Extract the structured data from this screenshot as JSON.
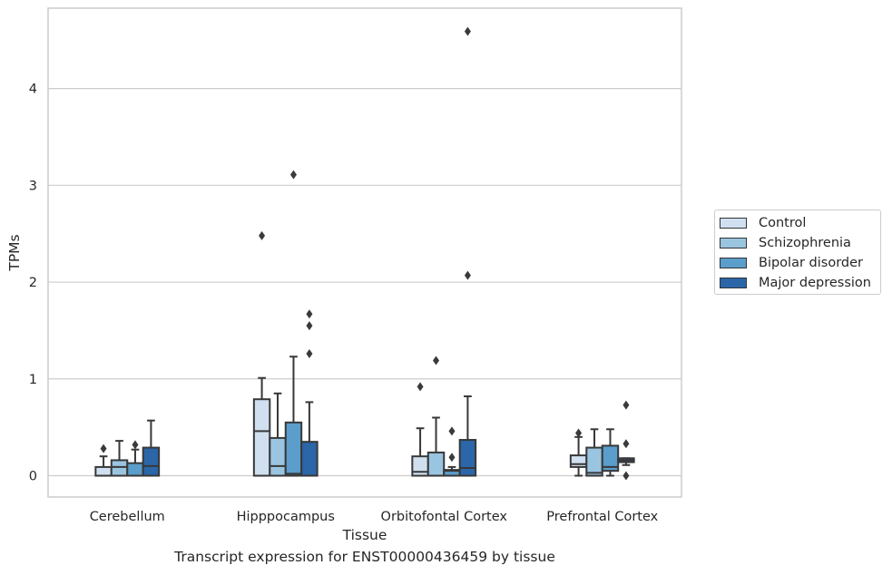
{
  "colors": {
    "Control": "#d0e0f0",
    "Schizophrenia": "#9ac5e0",
    "Bipolar disorder": "#5b9dcb",
    "Major depression": "#2a66a8",
    "grid": "#cccccc",
    "box_line": "#383838"
  },
  "caption": "Transcript expression for ENST00000436459 by tissue",
  "chart_data": {
    "type": "boxplot",
    "xlabel": "Tissue",
    "ylabel": "TPMs",
    "ylim": [
      -0.22,
      4.83
    ],
    "yticks": [
      0,
      1,
      2,
      3,
      4
    ],
    "grid": "horizontal",
    "legend_position": "right",
    "categories": [
      "Cerebellum",
      "Hipppocampus",
      "Orbitofontal Cortex",
      "Prefrontal Cortex"
    ],
    "series": [
      {
        "name": "Control",
        "boxes": [
          {
            "whislo": 0.0,
            "q1": 0.0,
            "med": 0.0,
            "q3": 0.09,
            "whishi": 0.2,
            "fliers": [
              0.28
            ]
          },
          {
            "whislo": 0.0,
            "q1": 0.0,
            "med": 0.46,
            "q3": 0.79,
            "whishi": 1.01,
            "fliers": [
              2.48
            ]
          },
          {
            "whislo": 0.0,
            "q1": 0.0,
            "med": 0.04,
            "q3": 0.2,
            "whishi": 0.49,
            "fliers": [
              0.92
            ]
          },
          {
            "whislo": 0.0,
            "q1": 0.09,
            "med": 0.12,
            "q3": 0.21,
            "whishi": 0.4,
            "fliers": [
              0.44
            ]
          }
        ]
      },
      {
        "name": "Schizophrenia",
        "boxes": [
          {
            "whislo": 0.0,
            "q1": 0.0,
            "med": 0.09,
            "q3": 0.16,
            "whishi": 0.36,
            "fliers": []
          },
          {
            "whislo": 0.0,
            "q1": 0.0,
            "med": 0.1,
            "q3": 0.39,
            "whishi": 0.85,
            "fliers": []
          },
          {
            "whislo": 0.0,
            "q1": 0.0,
            "med": 0.0,
            "q3": 0.24,
            "whishi": 0.6,
            "fliers": [
              1.19
            ]
          },
          {
            "whislo": 0.0,
            "q1": 0.0,
            "med": 0.03,
            "q3": 0.29,
            "whishi": 0.48,
            "fliers": []
          }
        ]
      },
      {
        "name": "Bipolar disorder",
        "boxes": [
          {
            "whislo": 0.0,
            "q1": 0.0,
            "med": 0.0,
            "q3": 0.13,
            "whishi": 0.27,
            "fliers": [
              0.32
            ]
          },
          {
            "whislo": 0.0,
            "q1": 0.0,
            "med": 0.02,
            "q3": 0.55,
            "whishi": 1.23,
            "fliers": [
              3.11
            ]
          },
          {
            "whislo": 0.0,
            "q1": 0.0,
            "med": 0.05,
            "q3": 0.06,
            "whishi": 0.09,
            "fliers": [
              0.19,
              0.46
            ]
          },
          {
            "whislo": 0.0,
            "q1": 0.05,
            "med": 0.09,
            "q3": 0.31,
            "whishi": 0.48,
            "fliers": []
          }
        ]
      },
      {
        "name": "Major depression",
        "boxes": [
          {
            "whislo": 0.0,
            "q1": 0.0,
            "med": 0.1,
            "q3": 0.29,
            "whishi": 0.57,
            "fliers": []
          },
          {
            "whislo": 0.0,
            "q1": 0.0,
            "med": 0.0,
            "q3": 0.35,
            "whishi": 0.76,
            "fliers": [
              1.26,
              1.55,
              1.67
            ]
          },
          {
            "whislo": 0.0,
            "q1": 0.0,
            "med": 0.08,
            "q3": 0.37,
            "whishi": 0.82,
            "fliers": [
              2.07,
              4.59
            ]
          },
          {
            "whislo": 0.11,
            "q1": 0.14,
            "med": 0.16,
            "q3": 0.18,
            "whishi": 0.18,
            "fliers": [
              0.0,
              0.33,
              0.73
            ]
          }
        ]
      }
    ]
  }
}
